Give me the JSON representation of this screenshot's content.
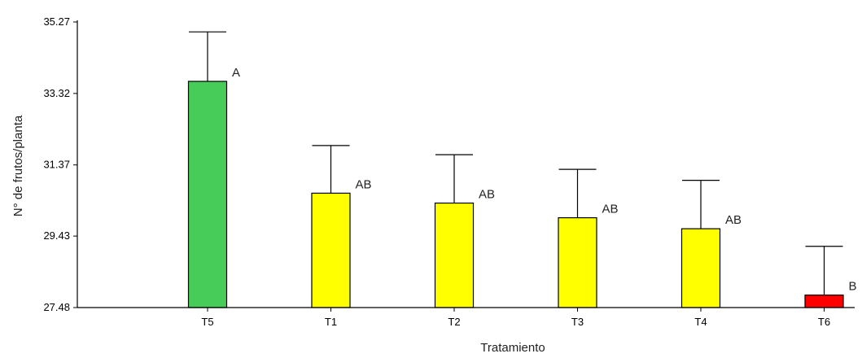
{
  "chart_data": {
    "type": "bar",
    "title": "",
    "xlabel": "Tratamiento",
    "ylabel": "N° de frutos/planta",
    "ylim": [
      27.48,
      35.27
    ],
    "yticks": [
      "27.48",
      "29.43",
      "31.37",
      "33.32",
      "35.27"
    ],
    "grid": false,
    "categories": [
      "T5",
      "T1",
      "T2",
      "T3",
      "T4",
      "T6"
    ],
    "values": [
      33.65,
      30.6,
      30.33,
      29.93,
      29.63,
      27.82
    ],
    "error_upper": [
      35.0,
      31.9,
      31.65,
      31.25,
      30.95,
      29.15
    ],
    "significance": [
      "A",
      "AB",
      "AB",
      "AB",
      "AB",
      "B"
    ],
    "colors": [
      "#47cc59",
      "#ffff00",
      "#ffff00",
      "#ffff00",
      "#ffff00",
      "#ff0000"
    ]
  }
}
